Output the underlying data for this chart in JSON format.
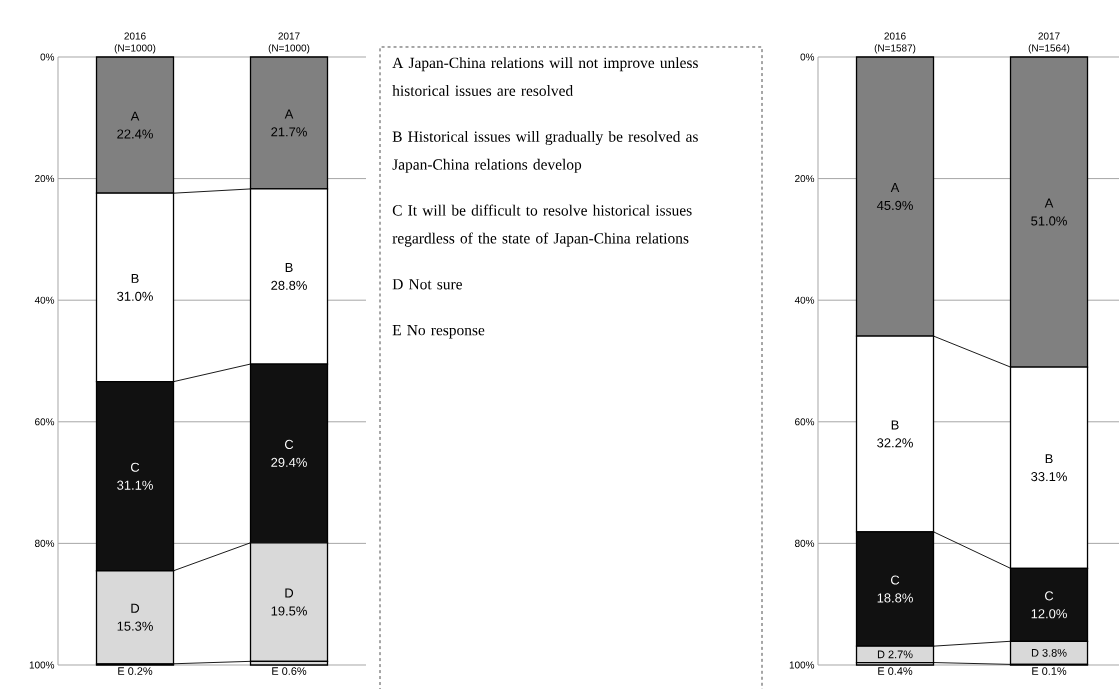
{
  "chart_data": [
    {
      "type": "bar",
      "stacked": true,
      "categories": [
        "2016 (N=1000)",
        "2017 (N=1000)"
      ],
      "series": [
        {
          "name": "A",
          "color": "#808080",
          "values": [
            22.4,
            21.7
          ],
          "value_labels": [
            "22.4%",
            "21.7%"
          ]
        },
        {
          "name": "B",
          "color": "#ffffff",
          "values": [
            31.0,
            28.8
          ],
          "value_labels": [
            "31.0%",
            "28.8%"
          ]
        },
        {
          "name": "C",
          "color": "#111111",
          "values": [
            31.1,
            29.4
          ],
          "value_labels": [
            "31.1%",
            "29.4%"
          ]
        },
        {
          "name": "D",
          "color": "#d9d9d9",
          "values": [
            15.3,
            19.5
          ],
          "value_labels": [
            "15.3%",
            "19.5%"
          ]
        },
        {
          "name": "E",
          "color": "#d9d9d9",
          "values": [
            0.2,
            0.6
          ],
          "value_labels": [
            "0.2%",
            "0.6%"
          ]
        }
      ],
      "ylim": [
        100,
        0
      ],
      "yticks": [
        {
          "value": 0,
          "label": "0%"
        },
        {
          "value": 20,
          "label": "20%"
        },
        {
          "value": 40,
          "label": "40%"
        },
        {
          "value": 60,
          "label": "60%"
        },
        {
          "value": 80,
          "label": "80%"
        },
        {
          "value": 100,
          "label": "100%"
        }
      ],
      "grid": "y"
    },
    {
      "type": "other",
      "annotations": [
        "A Japan-China relations will not improve unless historical issues are resolved",
        "B Historical issues will gradually be resolved as Japan-China relations develop",
        "C It will be difficult to resolve historical issues regardless of the state of Japan-China relations",
        "D Not sure",
        "E No response"
      ]
    },
    {
      "type": "bar",
      "stacked": true,
      "categories": [
        "2016 (N=1587)",
        "2017 (N=1564)"
      ],
      "series": [
        {
          "name": "A",
          "color": "#808080",
          "values": [
            45.9,
            51.0
          ],
          "value_labels": [
            "45.9%",
            "51.0%"
          ]
        },
        {
          "name": "B",
          "color": "#ffffff",
          "values": [
            32.2,
            33.1
          ],
          "value_labels": [
            "32.2%",
            "33.1%"
          ]
        },
        {
          "name": "C",
          "color": "#111111",
          "values": [
            18.8,
            12.0
          ],
          "value_labels": [
            "18.8%",
            "12.0%"
          ]
        },
        {
          "name": "D",
          "color": "#d9d9d9",
          "values": [
            2.7,
            3.8
          ],
          "value_labels": [
            "2.7%",
            "3.8%"
          ]
        },
        {
          "name": "E",
          "color": "#d9d9d9",
          "values": [
            0.4,
            0.1
          ],
          "value_labels": [
            "0.4%",
            "0.1%"
          ]
        }
      ],
      "ylim": [
        100,
        0
      ],
      "yticks": [
        {
          "value": 0,
          "label": "0%"
        },
        {
          "value": 20,
          "label": "20%"
        },
        {
          "value": 40,
          "label": "40%"
        },
        {
          "value": 60,
          "label": "60%"
        },
        {
          "value": 80,
          "label": "80%"
        },
        {
          "value": 100,
          "label": "100%"
        }
      ],
      "grid": "y"
    }
  ]
}
